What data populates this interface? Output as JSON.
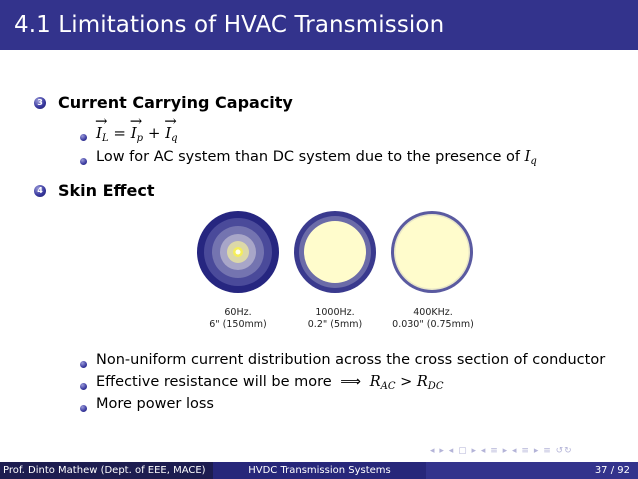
{
  "slide": {
    "title": "4.1 Limitations of HVAC Transmission",
    "items": [
      {
        "number": "3",
        "heading": "Current Carrying Capacity",
        "bullets": [
          {
            "type": "equation",
            "lhs": "I",
            "lhs_sub": "L",
            "op1": "=",
            "t1": "I",
            "t1_sub": "p",
            "op2": "+",
            "t2": "I",
            "t2_sub": "q"
          },
          {
            "type": "text",
            "text": "Low for AC system than DC system due to the presence of",
            "math": "I",
            "math_sub": "q"
          }
        ]
      },
      {
        "number": "4",
        "heading": "Skin Effect",
        "bullets": [
          {
            "type": "text",
            "text": "Non-uniform current distribution across the cross section of conductor"
          },
          {
            "type": "text",
            "text": "Effective resistance will be more",
            "arrow": "⟹",
            "r1": "R",
            "r1_sub": "AC",
            "op": ">",
            "r2": "R",
            "r2_sub": "DC"
          },
          {
            "type": "text",
            "text": "More power loss"
          }
        ]
      }
    ],
    "figure": {
      "conductors": [
        {
          "freq": "60Hz.",
          "size": "6\" (150mm)"
        },
        {
          "freq": "1000Hz.",
          "size": "0.2\" (5mm)"
        },
        {
          "freq": "400KHz.",
          "size": "0.030\" (0.75mm)"
        }
      ],
      "colors": {
        "outer": "#2d2d86",
        "ring": "#6b6ba8",
        "core": "#fffccc",
        "glow": "#f5ee5a"
      }
    },
    "nav_symbols": "◂ ▸ ◂ ▢ ▸ ◂ ≡ ▸ ◂ ≡ ▸ ≡ ↺↻",
    "footer": {
      "author": "Prof. Dinto Mathew (Dept. of EEE, MACE)",
      "course": "HVDC Transmission Systems",
      "page": "37 / 92"
    },
    "colors": {
      "header": "#33338c",
      "bullet": "#3a3aa0"
    }
  }
}
